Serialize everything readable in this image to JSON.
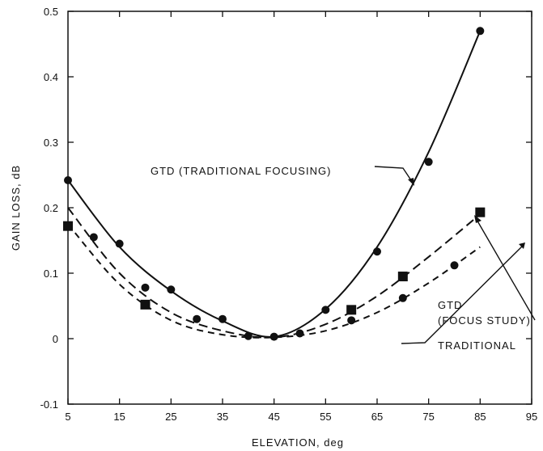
{
  "chart_data": {
    "type": "line",
    "xlabel": "ELEVATION, deg",
    "ylabel": "GAIN LOSS, dB",
    "xlim": [
      5,
      95
    ],
    "ylim": [
      -0.1,
      0.5
    ],
    "x_ticks": [
      "5",
      "15",
      "25",
      "35",
      "45",
      "55",
      "65",
      "75",
      "85",
      "95"
    ],
    "y_ticks": [
      "-0.1",
      "0",
      "0.1",
      "0.2",
      "0.3",
      "0.4",
      "0.5"
    ],
    "grid": false,
    "series": [
      {
        "name": "GTD (TRADITIONAL FOCUSING)",
        "line_style": "solid",
        "marker": "circle",
        "curve": {
          "x": [
            5,
            15,
            25,
            35,
            45,
            55,
            65,
            75,
            85
          ],
          "y": [
            0.242,
            0.14,
            0.073,
            0.027,
            0.003,
            0.045,
            0.14,
            0.285,
            0.47
          ]
        },
        "points": {
          "x": [
            5,
            10,
            15,
            20,
            25,
            35,
            40,
            45,
            50,
            55,
            65,
            75,
            85
          ],
          "y": [
            0.242,
            0.155,
            0.145,
            0.078,
            0.075,
            0.03,
            0.004,
            0.003,
            0.008,
            0.044,
            0.133,
            0.27,
            0.47
          ]
        }
      },
      {
        "name": "GTD (FOCUS STUDY)",
        "line_style": "long-dash",
        "marker": "square",
        "curve": {
          "x": [
            5,
            15,
            25,
            35,
            45,
            55,
            65,
            75,
            85
          ],
          "y": [
            0.2,
            0.1,
            0.04,
            0.012,
            0.002,
            0.022,
            0.065,
            0.125,
            0.19
          ]
        },
        "points": {
          "x": [
            5,
            20,
            60,
            70,
            85
          ],
          "y": [
            0.172,
            0.052,
            0.044,
            0.095,
            0.193
          ]
        }
      },
      {
        "name": "TRADITIONAL",
        "line_style": "short-dash",
        "marker": "circle",
        "curve": {
          "x": [
            5,
            15,
            25,
            35,
            45,
            55,
            65,
            75,
            85
          ],
          "y": [
            0.175,
            0.083,
            0.028,
            0.006,
            0.002,
            0.012,
            0.04,
            0.085,
            0.14
          ]
        },
        "points": {
          "x": [
            30,
            60,
            70,
            80
          ],
          "y": [
            0.03,
            0.028,
            0.062,
            0.112
          ]
        }
      }
    ],
    "annotations": {
      "gtd_traditional_focusing": "GTD (TRADITIONAL FOCUSING)",
      "gtd_line1": "GTD",
      "gtd_line2": "(FOCUS STUDY)",
      "traditional": "TRADITIONAL"
    }
  }
}
